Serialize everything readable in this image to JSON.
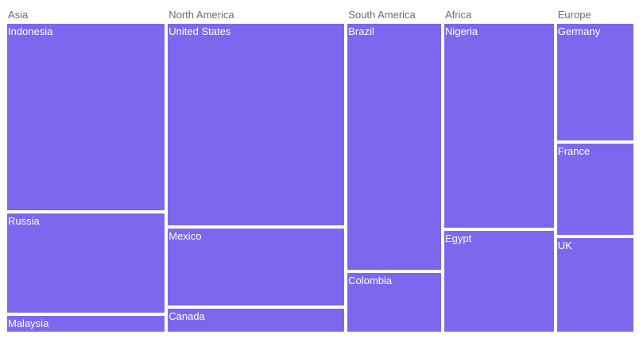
{
  "chart_data": {
    "type": "treemap",
    "tile_color": "#7B68EE",
    "group_label_color": "#6b6b6b",
    "groups": [
      {
        "name": "Asia",
        "children": [
          {
            "name": "Indonesia",
            "value": 274
          },
          {
            "name": "Russia",
            "value": 146
          },
          {
            "name": "Malaysia",
            "value": 23
          }
        ]
      },
      {
        "name": "North America",
        "children": [
          {
            "name": "United States",
            "value": 331
          },
          {
            "name": "Mexico",
            "value": 127
          },
          {
            "name": "Canada",
            "value": 38
          }
        ]
      },
      {
        "name": "South America",
        "children": [
          {
            "name": "Brazil",
            "value": 212
          },
          {
            "name": "Colombia",
            "value": 51
          }
        ]
      },
      {
        "name": "Africa",
        "children": [
          {
            "name": "Nigeria",
            "value": 206
          },
          {
            "name": "Egypt",
            "value": 102
          }
        ]
      },
      {
        "name": "Europe",
        "children": [
          {
            "name": "Germany",
            "value": 83
          },
          {
            "name": "France",
            "value": 65
          },
          {
            "name": "UK",
            "value": 67
          }
        ]
      }
    ]
  }
}
